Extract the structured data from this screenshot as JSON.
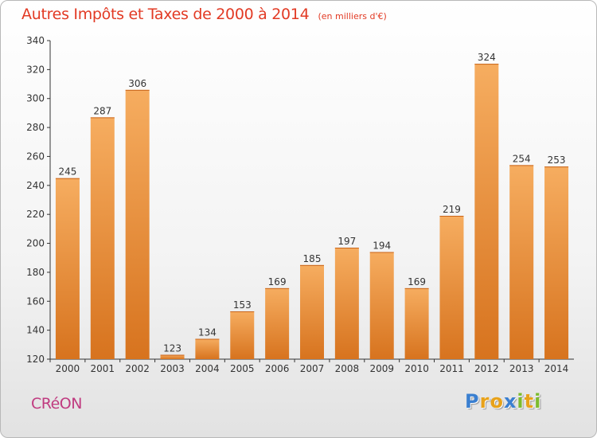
{
  "chart_data": {
    "type": "bar",
    "title": "Autres Impôts et Taxes de 2000 à 2014",
    "subtitle": "(en milliers d'€)",
    "categories": [
      "2000",
      "2001",
      "2002",
      "2003",
      "2004",
      "2005",
      "2006",
      "2007",
      "2008",
      "2009",
      "2010",
      "2011",
      "2012",
      "2013",
      "2014"
    ],
    "values": [
      245,
      287,
      306,
      123,
      134,
      153,
      169,
      185,
      197,
      194,
      169,
      219,
      324,
      254,
      253
    ],
    "value_labels": [
      "245",
      "287",
      "306",
      "123",
      "134",
      "153",
      "169",
      "185",
      "197",
      "194",
      "169",
      "219",
      "324",
      "254",
      "253"
    ],
    "yticks": [
      "120",
      "140",
      "160",
      "180",
      "200",
      "220",
      "240",
      "260",
      "280",
      "300",
      "320",
      "340"
    ],
    "ylim": [
      120,
      340
    ],
    "xlabel": "",
    "ylabel": "",
    "grid": false,
    "legend": "none",
    "bar_color_light": "#f6ad60",
    "bar_color_dark": "#d7731e",
    "label_color": "#333333",
    "axis_color": "#333333"
  },
  "commune": "CRéON",
  "logo": {
    "letters": [
      "P",
      "r",
      "o",
      "x",
      "i",
      "t",
      "i"
    ],
    "colors": [
      "#3a7fd0",
      "#e8a21a",
      "#e8a21a",
      "#3a7fd0",
      "#7cbb2e",
      "#e8a21a",
      "#7cbb2e"
    ]
  }
}
